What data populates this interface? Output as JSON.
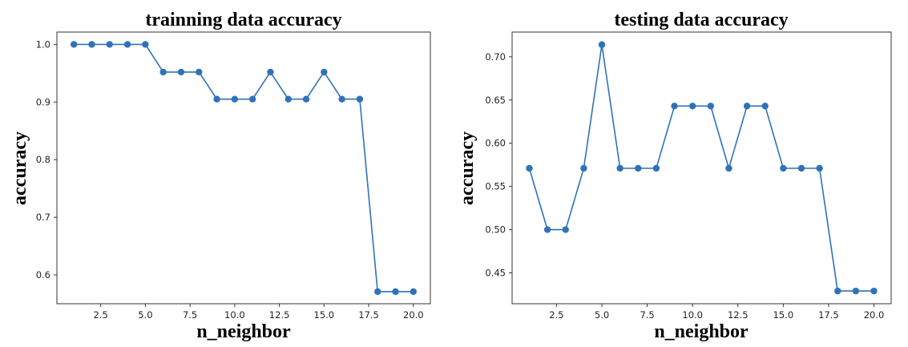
{
  "chart_data": [
    {
      "type": "line",
      "title": "trainning data accuracy",
      "xlabel": "n_neighbor",
      "ylabel": "accuracy",
      "x": [
        1,
        2,
        3,
        4,
        5,
        6,
        7,
        8,
        9,
        10,
        11,
        12,
        13,
        14,
        15,
        16,
        17,
        18,
        19,
        20
      ],
      "values": [
        1.0,
        1.0,
        1.0,
        1.0,
        1.0,
        0.952,
        0.952,
        0.952,
        0.905,
        0.905,
        0.905,
        0.952,
        0.905,
        0.905,
        0.952,
        0.905,
        0.905,
        0.571,
        0.571,
        0.571
      ],
      "xlim": [
        0.05,
        20.95
      ],
      "ylim": [
        0.55,
        1.0214
      ],
      "xticks": [
        2.5,
        5.0,
        7.5,
        10.0,
        12.5,
        15.0,
        17.5,
        20.0
      ],
      "xtick_labels": [
        "2.5",
        "5.0",
        "7.5",
        "10.0",
        "12.5",
        "15.0",
        "17.5",
        "20.0"
      ],
      "yticks": [
        0.6,
        0.7,
        0.8,
        0.9,
        1.0
      ],
      "ytick_labels": [
        "0.6",
        "0.7",
        "0.8",
        "0.9",
        "1.0"
      ],
      "grid": false,
      "color": "#2f72b8"
    },
    {
      "type": "line",
      "title": "testing data accuracy",
      "xlabel": "n_neighbor",
      "ylabel": "accuracy",
      "x": [
        1,
        2,
        3,
        4,
        5,
        6,
        7,
        8,
        9,
        10,
        11,
        12,
        13,
        14,
        15,
        16,
        17,
        18,
        19,
        20
      ],
      "values": [
        0.571,
        0.5,
        0.5,
        0.571,
        0.714,
        0.571,
        0.571,
        0.571,
        0.643,
        0.643,
        0.643,
        0.571,
        0.643,
        0.643,
        0.571,
        0.571,
        0.571,
        0.429,
        0.429,
        0.429
      ],
      "xlim": [
        0.05,
        20.95
      ],
      "ylim": [
        0.4143,
        0.7286
      ],
      "xticks": [
        2.5,
        5.0,
        7.5,
        10.0,
        12.5,
        15.0,
        17.5,
        20.0
      ],
      "xtick_labels": [
        "2.5",
        "5.0",
        "7.5",
        "10.0",
        "12.5",
        "15.0",
        "17.5",
        "20.0"
      ],
      "yticks": [
        0.45,
        0.5,
        0.55,
        0.6,
        0.65,
        0.7
      ],
      "ytick_labels": [
        "0.45",
        "0.50",
        "0.55",
        "0.60",
        "0.65",
        "0.70"
      ],
      "grid": false,
      "color": "#2f72b8"
    }
  ]
}
